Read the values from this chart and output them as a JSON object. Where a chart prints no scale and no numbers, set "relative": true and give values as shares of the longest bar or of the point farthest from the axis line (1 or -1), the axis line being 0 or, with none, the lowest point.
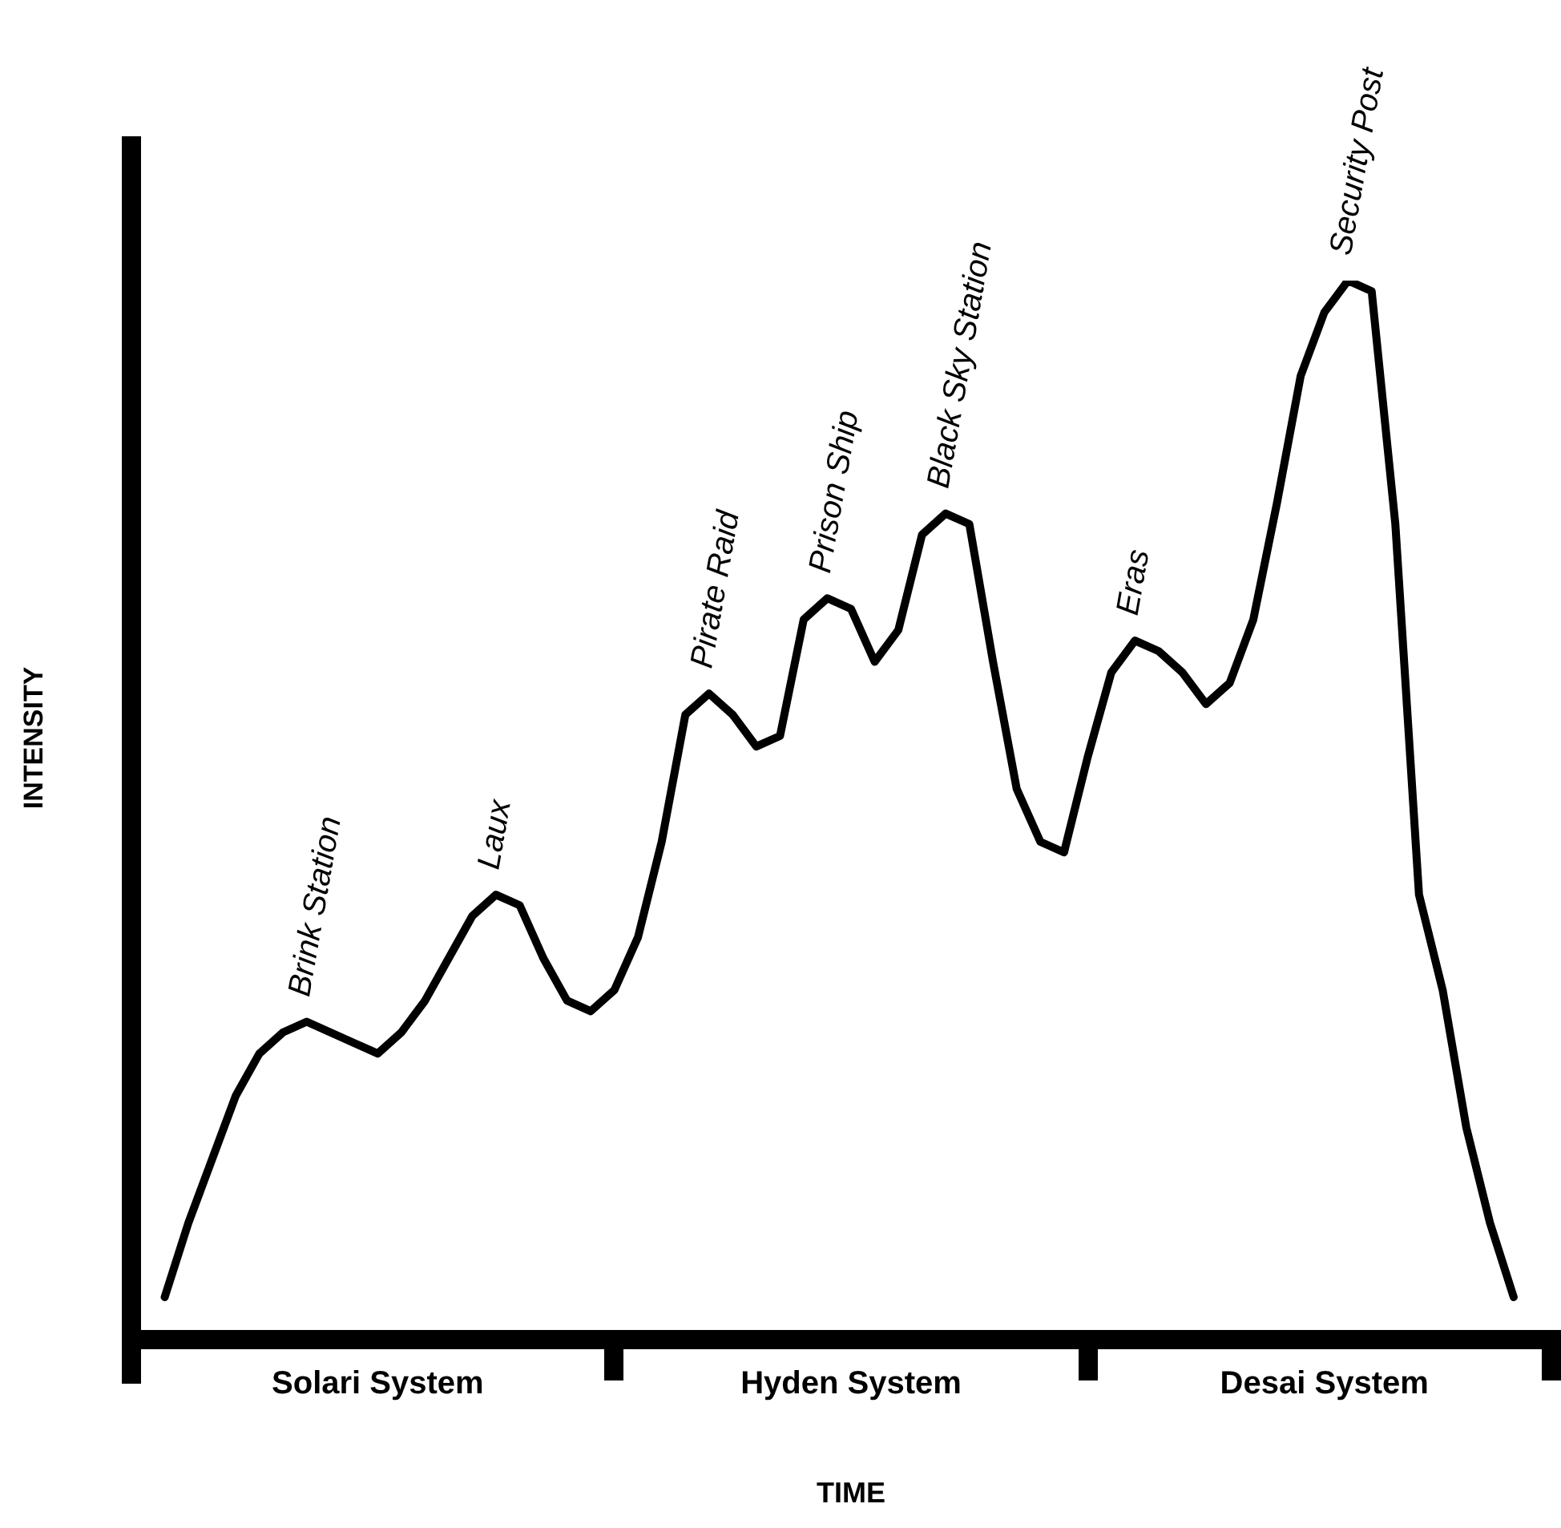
{
  "chart_data": {
    "type": "line",
    "relative": true,
    "xlabel": "TIME",
    "ylabel": "INTENSITY",
    "color": "#000000",
    "legend": false,
    "grid": false,
    "marker": "none",
    "categories": [
      null,
      null,
      null,
      null,
      null,
      null,
      null,
      null,
      null,
      "Solari System",
      null,
      null,
      null,
      null,
      null,
      null,
      null,
      null,
      null,
      null,
      null,
      null,
      null,
      null,
      null,
      null,
      null,
      null,
      null,
      "Hyden System",
      null,
      null,
      null,
      null,
      null,
      null,
      null,
      null,
      null,
      null,
      null,
      null,
      null,
      null,
      null,
      null,
      null,
      null,
      null,
      "Desai System",
      null,
      null,
      null,
      null,
      null,
      null,
      null,
      null,
      null
    ],
    "values": [
      0.04,
      0.11,
      0.17,
      0.23,
      0.27,
      0.29,
      0.3,
      0.29,
      0.28,
      0.27,
      0.29,
      0.32,
      0.36,
      0.4,
      0.42,
      0.41,
      0.36,
      0.32,
      0.31,
      0.33,
      0.38,
      0.47,
      0.59,
      0.61,
      0.59,
      0.56,
      0.57,
      0.68,
      0.7,
      0.69,
      0.64,
      0.67,
      0.76,
      0.78,
      0.77,
      0.64,
      0.52,
      0.47,
      0.46,
      0.55,
      0.63,
      0.66,
      0.65,
      0.63,
      0.6,
      0.62,
      0.68,
      0.79,
      0.91,
      0.97,
      1.0,
      0.99,
      0.77,
      0.42,
      0.33,
      0.2,
      0.11,
      0.04,
      null
    ],
    "annotations": [
      {
        "text": "Brink Station",
        "y": 0.3
      },
      {
        "text": "Laux",
        "y": 0.42
      },
      {
        "text": "Pirate Raid",
        "y": 0.61
      },
      {
        "text": "Prison Ship",
        "y": 0.7
      },
      {
        "text": "Black Sky Station",
        "y": 0.78
      },
      {
        "text": "Eras",
        "y": 0.66
      },
      {
        "text": "Security Post",
        "y": 1.0
      }
    ]
  }
}
